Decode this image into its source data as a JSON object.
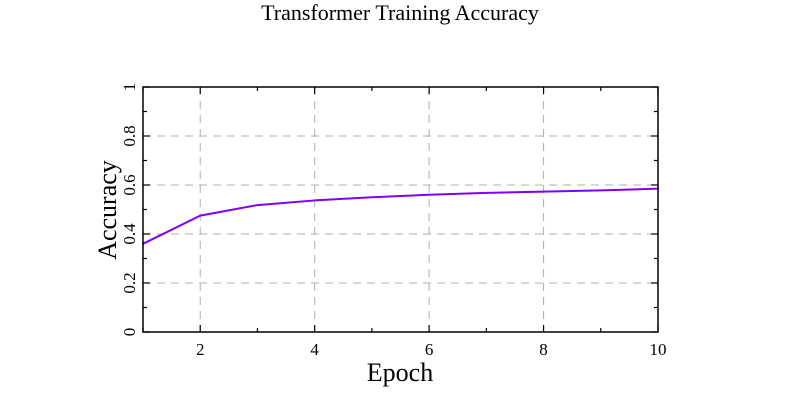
{
  "chart_data": {
    "type": "line",
    "title": "Transformer Training Accuracy",
    "xlabel": "Epoch",
    "ylabel": "Accuracy",
    "xlim": [
      1,
      10
    ],
    "ylim": [
      0,
      1
    ],
    "xticks": [
      2,
      4,
      6,
      8,
      10
    ],
    "yticks": [
      0,
      0.2,
      0.4,
      0.6,
      0.8,
      1
    ],
    "xtick_labels": [
      "2",
      "4",
      "6",
      "8",
      "10"
    ],
    "ytick_labels": [
      "0",
      "0.2",
      "0.4",
      "0.6",
      "0.8",
      "1"
    ],
    "grid": true,
    "x": [
      1,
      2,
      3,
      4,
      5,
      6,
      7,
      8,
      9,
      10
    ],
    "series": [
      {
        "color": "#8000ff",
        "values": [
          0.36,
          0.475,
          0.518,
          0.537,
          0.55,
          0.56,
          0.568,
          0.573,
          0.578,
          0.585
        ]
      }
    ]
  }
}
